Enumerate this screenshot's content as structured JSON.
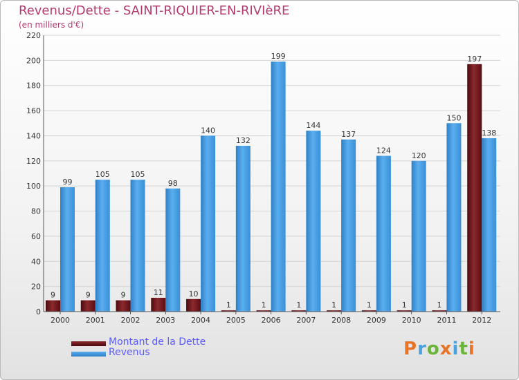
{
  "title": "Revenus/Dette - SAINT-RIQUIER-EN-RIVIèRE",
  "subtitle": "(en milliers d'€)",
  "legend": [
    {
      "label": "Montant de la Dette",
      "color": "#6b0f14"
    },
    {
      "label": "Revenus",
      "color": "#3d93d8"
    }
  ],
  "logo": {
    "letters": [
      "P",
      "r",
      "o",
      "x",
      "i",
      "t",
      "i"
    ],
    "colors": [
      "#e8742a",
      "#4aa3df",
      "#6bb33a",
      "#e8742a",
      "#4aa3df",
      "#6bb33a",
      "#e8742a"
    ]
  },
  "chart_data": {
    "type": "bar",
    "categories": [
      "2000",
      "2001",
      "2002",
      "2003",
      "2004",
      "2005",
      "2006",
      "2007",
      "2008",
      "2009",
      "2010",
      "2011",
      "2012"
    ],
    "series": [
      {
        "name": "Montant de la Dette",
        "color": "#6b0f14",
        "values": [
          9,
          9,
          9,
          11,
          10,
          1,
          1,
          1,
          1,
          1,
          1,
          1,
          197
        ]
      },
      {
        "name": "Revenus",
        "color": "#3d93d8",
        "values": [
          99,
          105,
          105,
          98,
          140,
          132,
          199,
          144,
          137,
          124,
          120,
          150,
          138
        ]
      }
    ],
    "ylim": [
      0,
      220
    ],
    "yticks": [
      0,
      20,
      40,
      60,
      80,
      100,
      120,
      140,
      160,
      180,
      200,
      220
    ],
    "grid": true,
    "legend_position": "bottom-left"
  }
}
